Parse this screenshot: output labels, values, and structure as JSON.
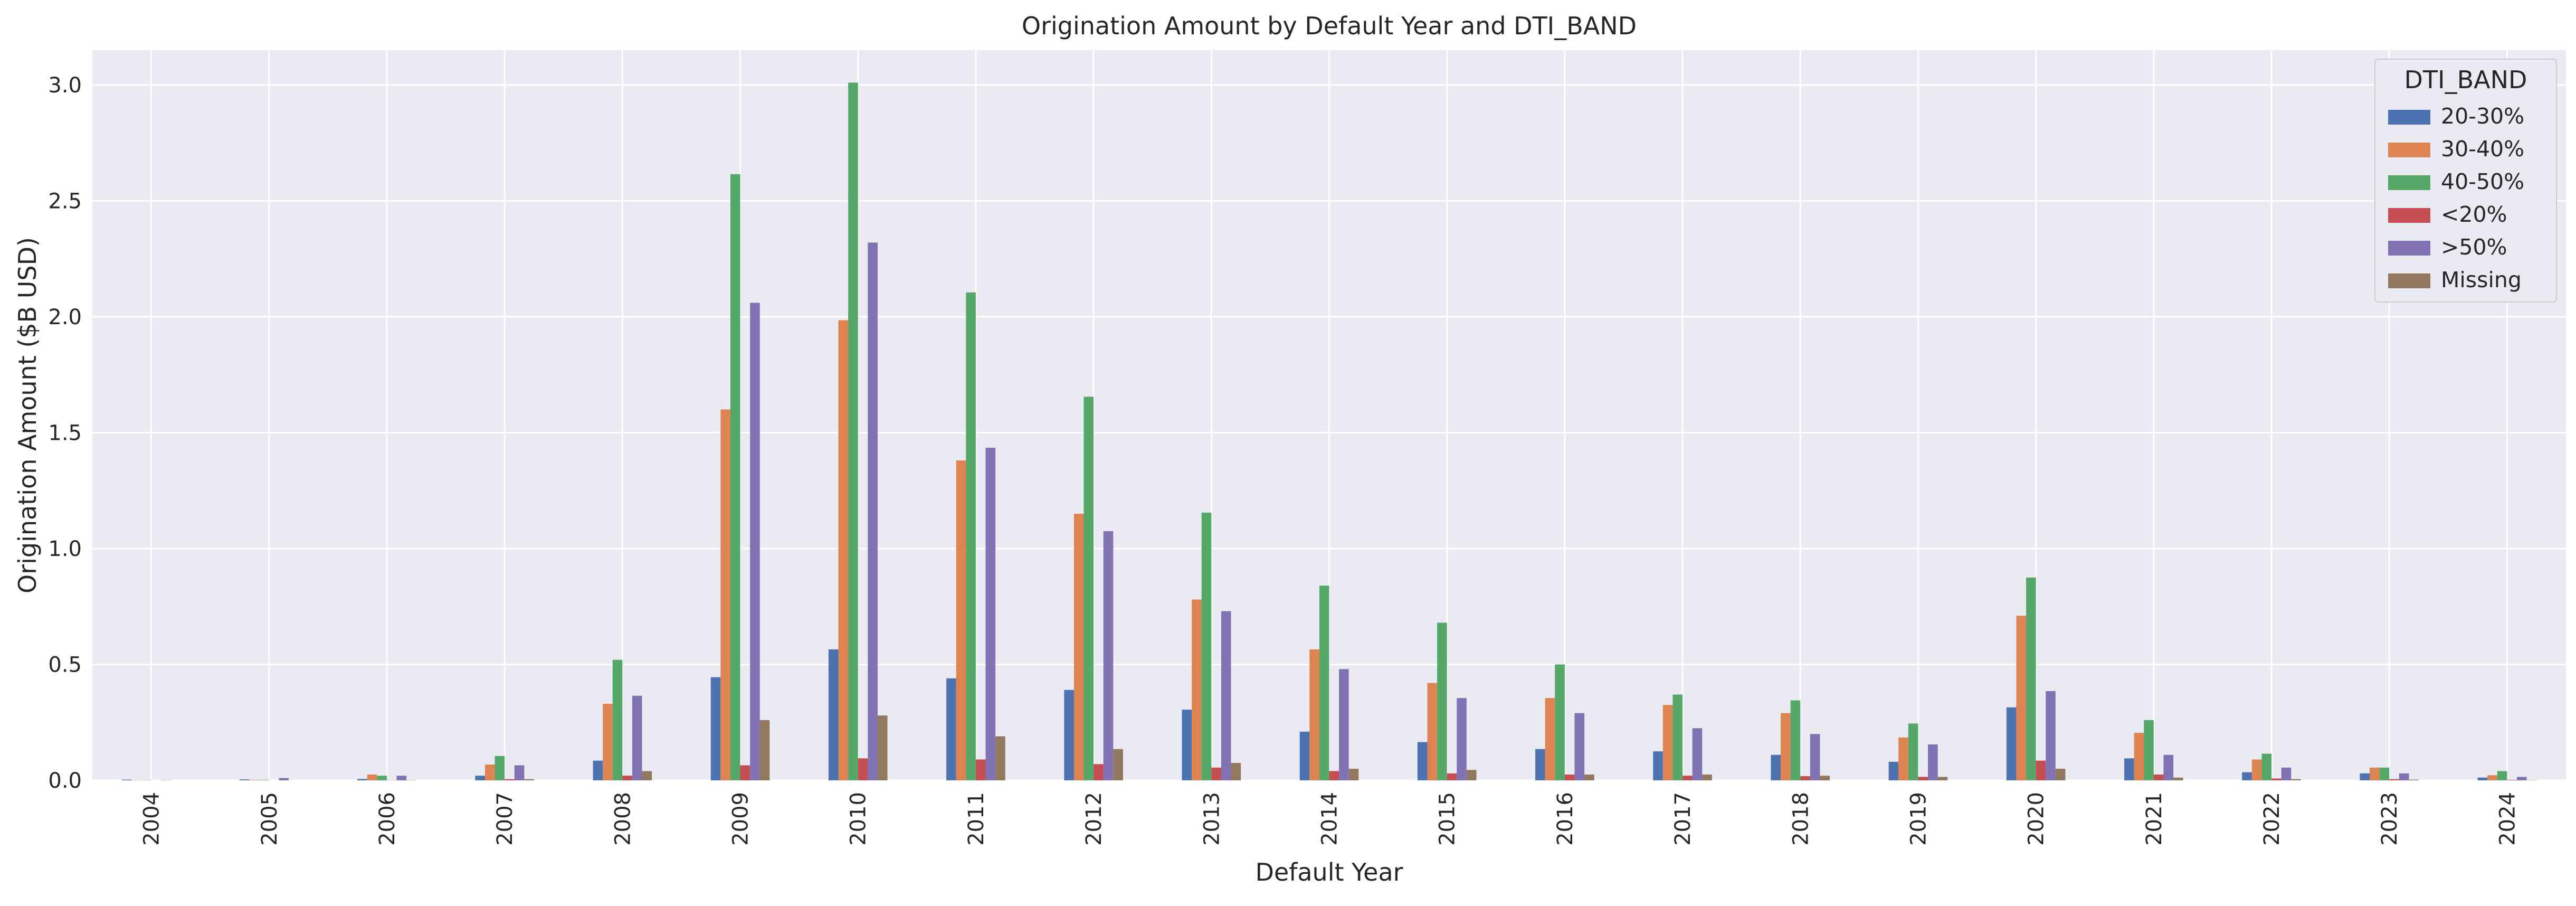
{
  "chart_data": {
    "type": "bar",
    "title": "Origination Amount by Default Year and DTI_BAND",
    "xlabel": "Default Year",
    "ylabel": "Origination Amount ($B USD)",
    "ylim": [
      0,
      3.15
    ],
    "yticks": [
      "0.0",
      "0.5",
      "1.0",
      "1.5",
      "2.0",
      "2.5",
      "3.0"
    ],
    "grid": true,
    "legend": {
      "title": "DTI_BAND",
      "placement": "top-right"
    },
    "categories": [
      "2004",
      "2005",
      "2006",
      "2007",
      "2008",
      "2009",
      "2010",
      "2011",
      "2012",
      "2013",
      "2014",
      "2015",
      "2016",
      "2017",
      "2018",
      "2019",
      "2020",
      "2021",
      "2022",
      "2023",
      "2024"
    ],
    "series": [
      {
        "name": "20-30%",
        "color": "#4c72b0",
        "values": [
          0.003,
          0.004,
          0.006,
          0.02,
          0.085,
          0.445,
          0.565,
          0.44,
          0.39,
          0.305,
          0.21,
          0.165,
          0.135,
          0.125,
          0.11,
          0.08,
          0.315,
          0.095,
          0.035,
          0.03,
          0.012
        ]
      },
      {
        "name": "30-40%",
        "color": "#dd8452",
        "values": [
          0.001,
          0.002,
          0.025,
          0.068,
          0.33,
          1.6,
          1.985,
          1.38,
          1.15,
          0.78,
          0.565,
          0.42,
          0.355,
          0.325,
          0.29,
          0.185,
          0.71,
          0.205,
          0.09,
          0.055,
          0.022
        ]
      },
      {
        "name": "40-50%",
        "color": "#55a868",
        "values": [
          0.001,
          0.002,
          0.02,
          0.105,
          0.52,
          2.615,
          3.01,
          2.105,
          1.655,
          1.155,
          0.84,
          0.68,
          0.5,
          0.37,
          0.345,
          0.245,
          0.875,
          0.26,
          0.115,
          0.055,
          0.04
        ]
      },
      {
        "name": "<20%",
        "color": "#c44e52",
        "values": [
          0.0,
          0.0,
          0.001,
          0.005,
          0.02,
          0.065,
          0.095,
          0.09,
          0.07,
          0.055,
          0.04,
          0.03,
          0.025,
          0.02,
          0.018,
          0.015,
          0.085,
          0.025,
          0.008,
          0.005,
          0.002
        ]
      },
      {
        "name": ">50%",
        "color": "#8172b3",
        "values": [
          0.001,
          0.01,
          0.02,
          0.065,
          0.365,
          2.06,
          2.32,
          1.435,
          1.075,
          0.73,
          0.48,
          0.355,
          0.29,
          0.225,
          0.2,
          0.155,
          0.385,
          0.11,
          0.055,
          0.03,
          0.015
        ]
      },
      {
        "name": "Missing",
        "color": "#937860",
        "values": [
          0.0,
          0.0,
          0.001,
          0.005,
          0.04,
          0.26,
          0.28,
          0.19,
          0.135,
          0.075,
          0.05,
          0.045,
          0.025,
          0.025,
          0.02,
          0.015,
          0.05,
          0.012,
          0.005,
          0.003,
          0.001
        ]
      }
    ]
  }
}
